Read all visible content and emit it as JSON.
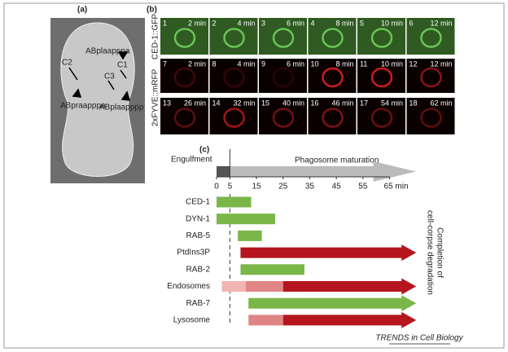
{
  "panel_a": {
    "label": "(a)",
    "cells": [
      "ABplaapppa",
      "C2",
      "C1",
      "C3",
      "ABpraapppa",
      "ABplaapppp"
    ]
  },
  "panel_b": {
    "label": "(b)",
    "row_labels": [
      "CED-1::GFP",
      "2xFYVE::mRFP"
    ],
    "rows": [
      [
        {
          "index": "1",
          "time": "2 min"
        },
        {
          "index": "2",
          "time": "4 min"
        },
        {
          "index": "3",
          "time": "6 min"
        },
        {
          "index": "4",
          "time": "8 min"
        },
        {
          "index": "5",
          "time": "10 min"
        },
        {
          "index": "6",
          "time": "12 min"
        }
      ],
      [
        {
          "index": "7",
          "time": "2 min"
        },
        {
          "index": "8",
          "time": "4 min"
        },
        {
          "index": "9",
          "time": "6 min"
        },
        {
          "index": "10",
          "time": "8 min"
        },
        {
          "index": "11",
          "time": "10 min"
        },
        {
          "index": "12",
          "time": "12 min"
        }
      ],
      [
        {
          "index": "13",
          "time": "26 min"
        },
        {
          "index": "14",
          "time": "32 min"
        },
        {
          "index": "15",
          "time": "40 min"
        },
        {
          "index": "16",
          "time": "46 min"
        },
        {
          "index": "17",
          "time": "54 min"
        },
        {
          "index": "18",
          "time": "62 min"
        }
      ]
    ]
  },
  "panel_c": {
    "label": "(c)",
    "engulfment": "Engulfment",
    "maturation": "Phagosome maturation",
    "xlim": [
      0,
      75
    ],
    "xticks": [
      0,
      5,
      15,
      25,
      35,
      45,
      55,
      {
        "value": 65,
        "label": "65 min"
      }
    ],
    "side_label": [
      "Completion of",
      "cell-corpse degradation"
    ],
    "bars": [
      {
        "name": "CED-1",
        "segments": [
          {
            "start": 0,
            "end": 13,
            "color": "#7ab648"
          }
        ]
      },
      {
        "name": "DYN-1",
        "segments": [
          {
            "start": 0,
            "end": 22,
            "color": "#7ab648"
          }
        ]
      },
      {
        "name": "RAB-5",
        "segments": [
          {
            "start": 8,
            "end": 17,
            "color": "#7ab648"
          }
        ]
      },
      {
        "name": "PtdIns3P",
        "segments": [
          {
            "start": 9,
            "end": 75,
            "color": "#b5161e"
          }
        ]
      },
      {
        "name": "RAB-2",
        "segments": [
          {
            "start": 9,
            "end": 33,
            "color": "#7ab648"
          }
        ]
      },
      {
        "name": "Endosomes",
        "segments": [
          {
            "start": 2,
            "end": 11,
            "color": "#f2b3b3"
          },
          {
            "start": 11,
            "end": 25,
            "color": "#e08585"
          },
          {
            "start": 25,
            "end": 75,
            "color": "#b5161e"
          }
        ]
      },
      {
        "name": "RAB-7",
        "segments": [
          {
            "start": 12,
            "end": 75,
            "color": "#7ab648"
          }
        ]
      },
      {
        "name": "Lysosome",
        "segments": [
          {
            "start": 12,
            "end": 25,
            "color": "#e08585"
          },
          {
            "start": 25,
            "end": 75,
            "color": "#b5161e"
          }
        ]
      }
    ]
  },
  "credit": "TRENDS in Cell Biology"
}
